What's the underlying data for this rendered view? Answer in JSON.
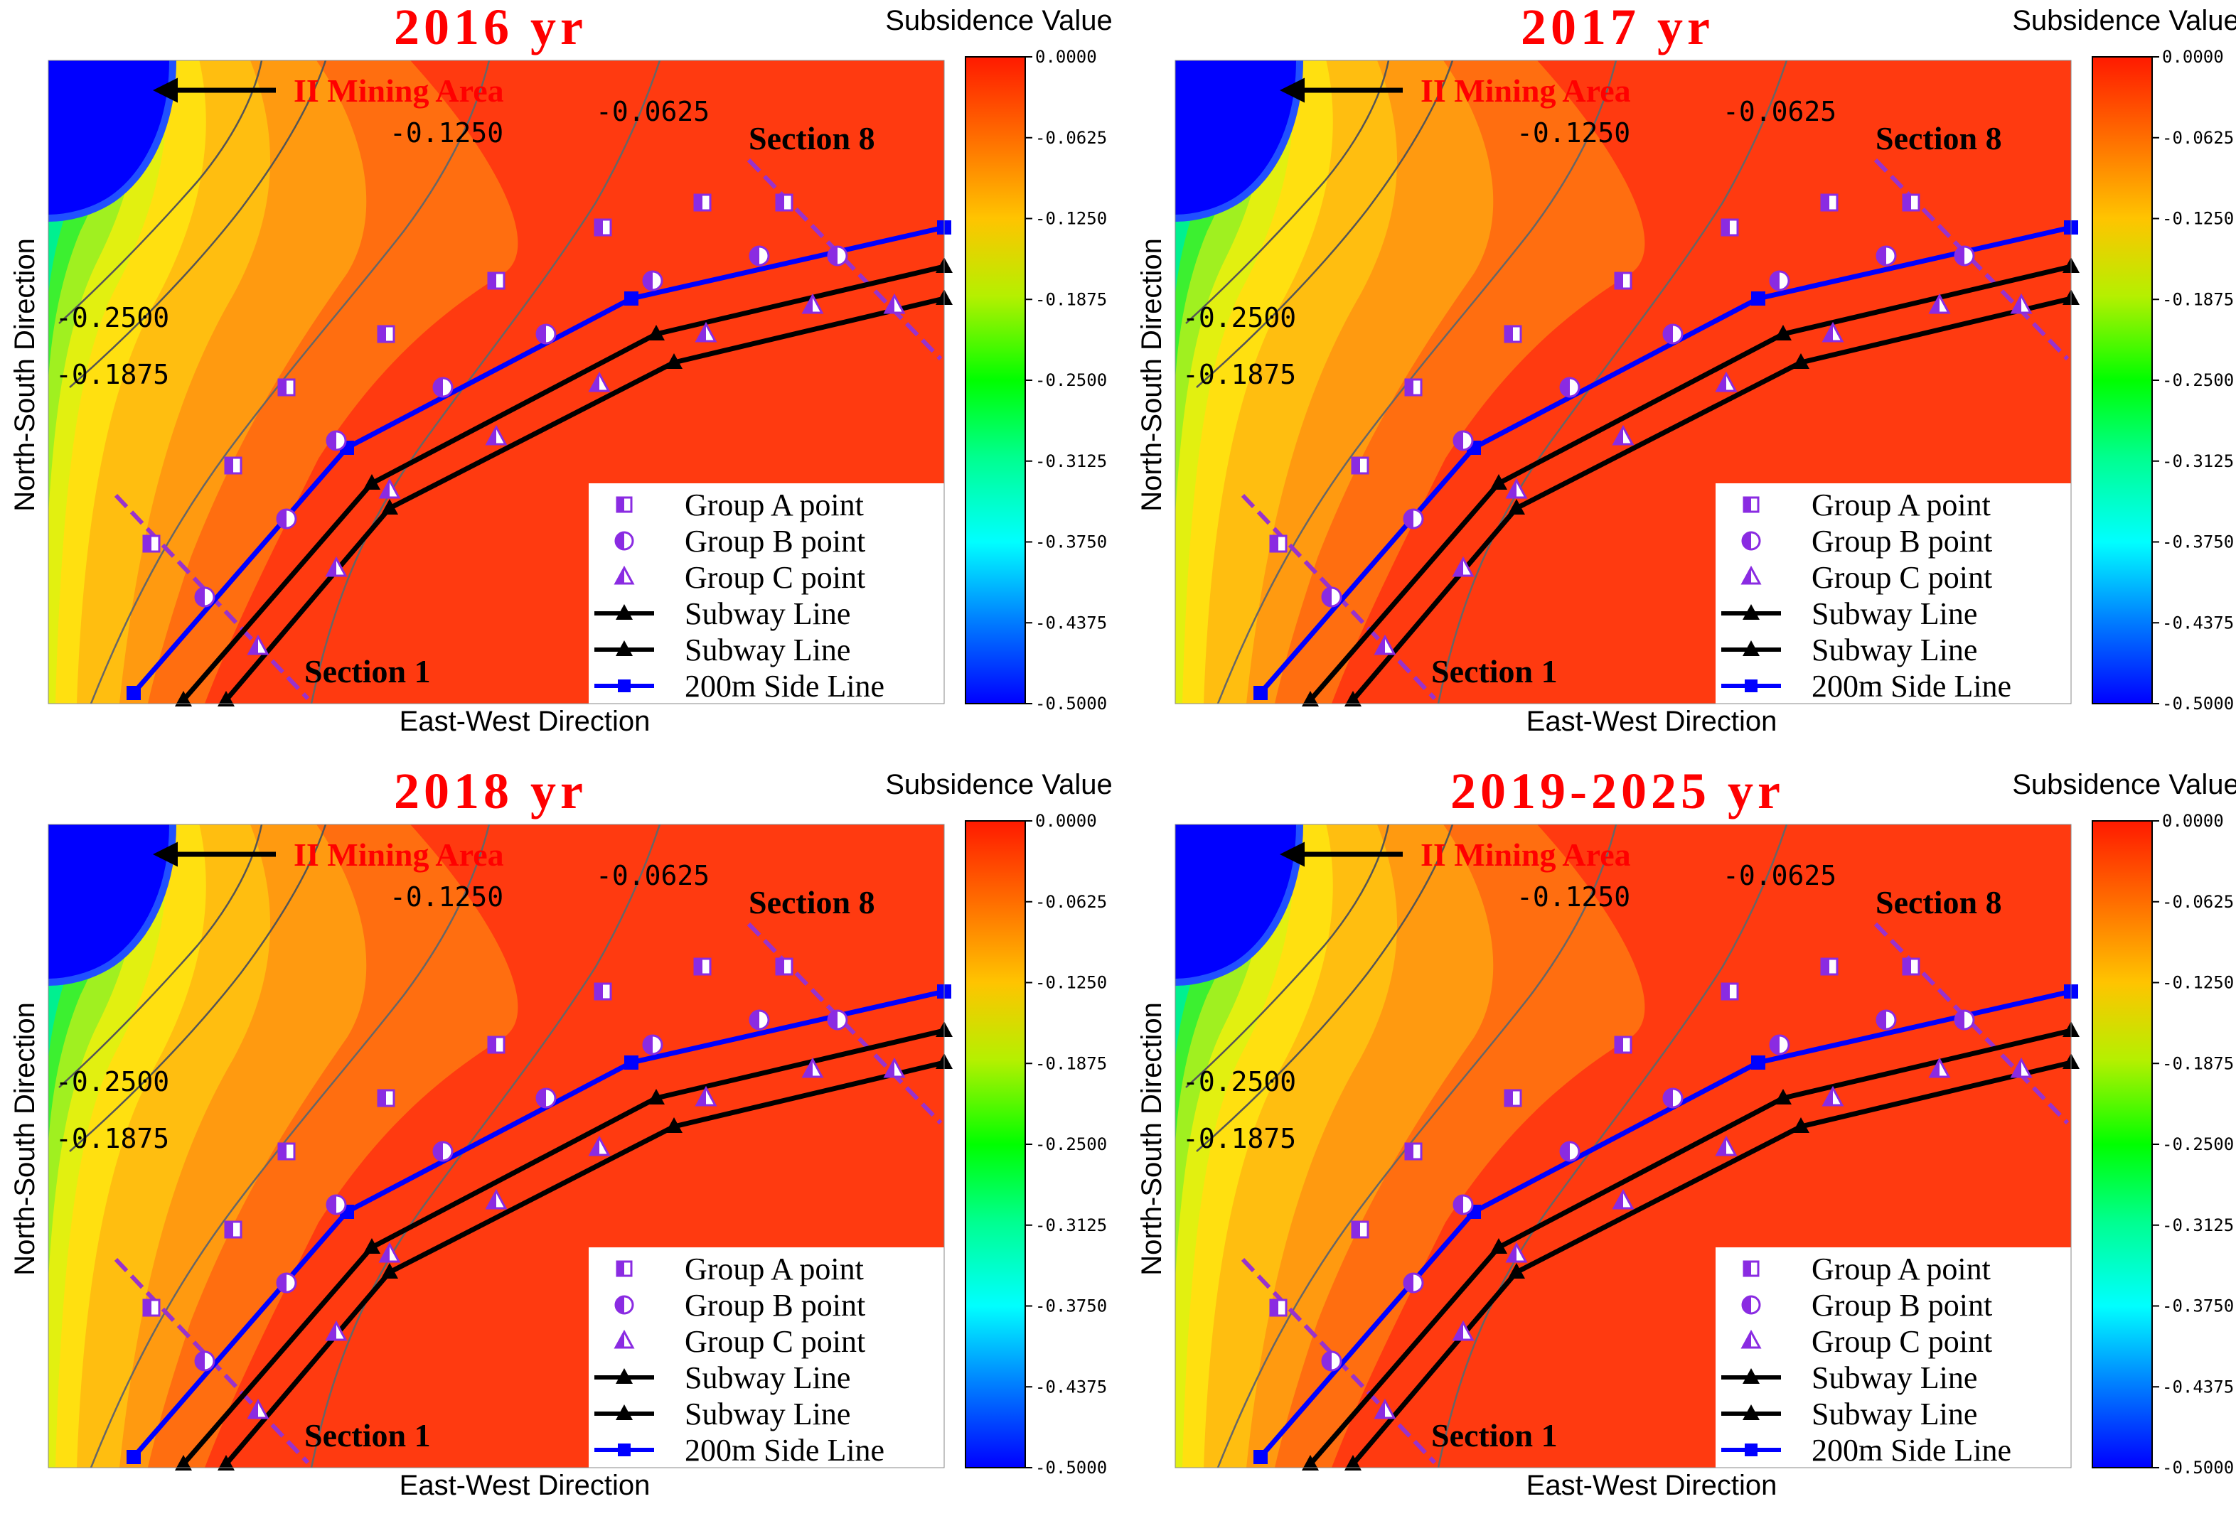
{
  "figure": {
    "colorbar_title": "Subsidence Value",
    "colorbar_ticks": [
      "0.0000",
      "-0.0625",
      "-0.1250",
      "-0.1875",
      "-0.2500",
      "-0.3125",
      "-0.3750",
      "-0.4375",
      "-0.5000"
    ],
    "x_label": "East-West Direction",
    "y_label": "North-South Direction",
    "area_label": "II Mining Area",
    "section_labels": [
      "Section 1",
      "Section 8"
    ],
    "legend": [
      "Group A point",
      "Group B point",
      "Group C point",
      "Subway Line",
      "Subway Line",
      "200m Side Line"
    ],
    "colors": {
      "title_red": "#ff0000",
      "side_line_blue": "#0000ff",
      "subway_black": "#000000",
      "marker_purple": "#8a2be2",
      "section_line": "#9932cc"
    },
    "icons": [
      "square-half-marker-icon",
      "circle-half-marker-icon",
      "triangle-half-marker-icon",
      "triangle-marker-icon",
      "square-marker-icon"
    ]
  },
  "chart_data": [
    {
      "type": "contour",
      "title": "2016 yr",
      "value_range": [
        -0.5,
        0.0
      ],
      "contour_labels": [
        "-0.0625",
        "-0.1250",
        "-0.1875",
        "-0.2500"
      ]
    },
    {
      "type": "contour",
      "title": "2017 yr",
      "value_range": [
        -0.5,
        0.0
      ],
      "contour_labels": [
        "-0.0625",
        "-0.1250",
        "-0.1875",
        "-0.2500"
      ]
    },
    {
      "type": "contour",
      "title": "2018 yr",
      "value_range": [
        -0.5,
        0.0
      ],
      "contour_labels": [
        "-0.0625",
        "-0.1250",
        "-0.1875",
        "-0.2500"
      ]
    },
    {
      "type": "contour",
      "title": "2019-2025 yr",
      "value_range": [
        -0.5,
        0.0
      ],
      "contour_labels": [
        "-0.0625",
        "-0.1250",
        "-0.1875",
        "-0.2500"
      ]
    }
  ]
}
